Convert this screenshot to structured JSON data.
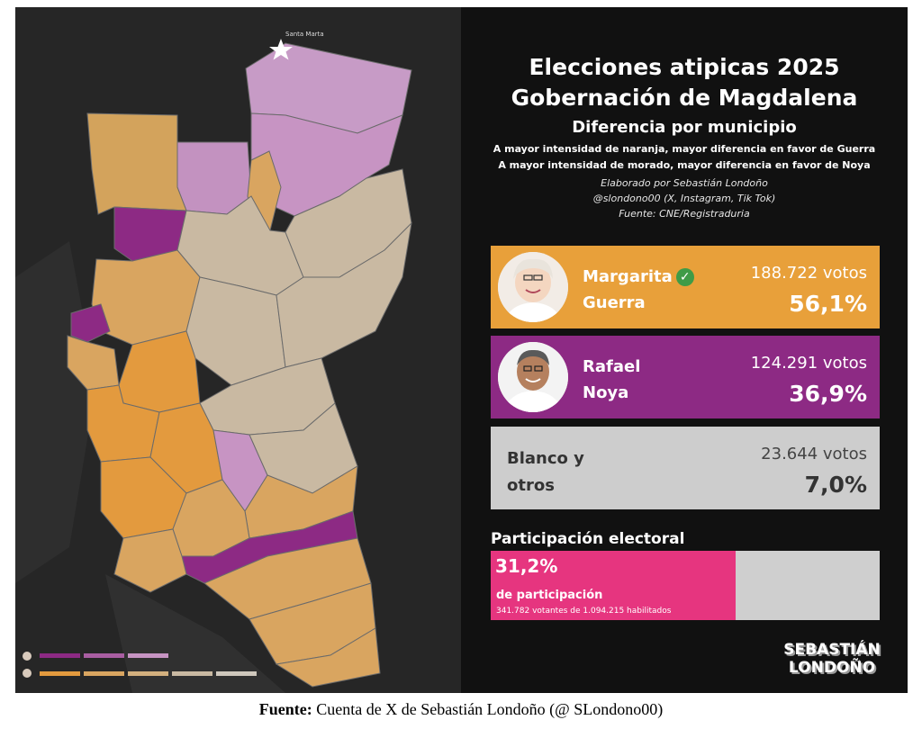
{
  "title_line1": "Elecciones atipicas 2025",
  "title_line2": "Gobernación de Magdalena",
  "subtitle": "Diferencia por municipio",
  "note_orange": "A mayor intensidad de naranja, mayor diferencia en favor de Guerra",
  "note_purple": "A mayor intensidad de morado, mayor diferencia en favor de Noya",
  "credit_author": "Elaborado por Sebastián Londoño",
  "credit_handle": "@slondono00 (X, Instagram, Tik Tok)",
  "credit_source": "Fuente: CNE/Registraduria",
  "map": {
    "city_label": "Santa Marta",
    "colors": {
      "strong_orange": "#e39a3e",
      "light_orange": "#d9a560",
      "neutral": "#c9b9a2",
      "light_purple": "#b98ab4",
      "strong_purple": "#8d2a84"
    }
  },
  "candidates": [
    {
      "first": "Margarita",
      "last": "Guerra",
      "votes": "188.722 votos",
      "pct": "56,1%",
      "color": "#e8a03a",
      "winner": true
    },
    {
      "first": "Rafael",
      "last": "Noya",
      "votes": "124.291 votos",
      "pct": "36,9%",
      "color": "#8d2a84"
    },
    {
      "first": "Blanco y",
      "last": "otros",
      "votes": "23.644 votos",
      "pct": "7,0%",
      "color": "#cdcdcd"
    }
  ],
  "participation": {
    "title": "Participación electoral",
    "pct": "31,2%",
    "value": 0.312,
    "label": "de participación",
    "detail": "341.782 votantes de 1.094.215 habilitados",
    "color": "#e6357f"
  },
  "logo_line1": "SEBASTIÁN",
  "logo_line2": "LONDOÑO",
  "caption": {
    "bold": "Fuente:",
    "text": " Cuenta de X de Sebastián Londoño (@ SLondono00)"
  }
}
